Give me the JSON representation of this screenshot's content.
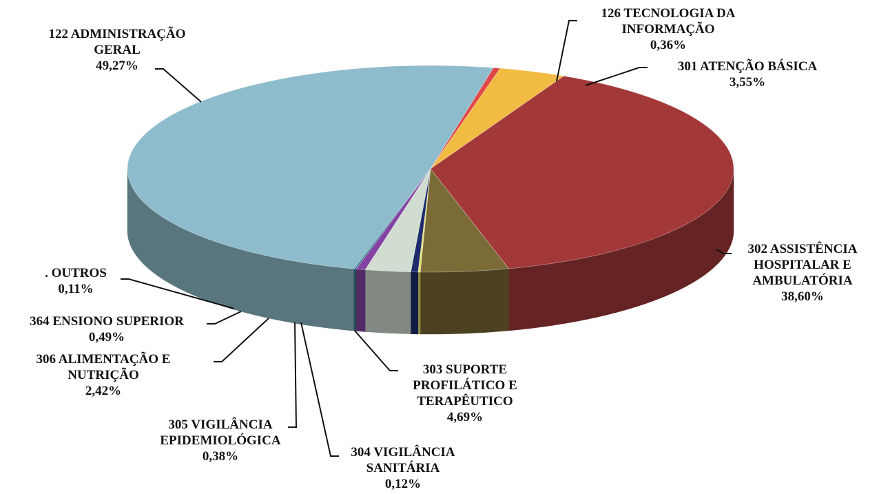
{
  "chart_data": {
    "type": "pie",
    "categories": [
      "122 ADMINISTRAÇÃO GERAL",
      "126 TECNOLOGIA DA INFORMAÇÃO",
      "301 ATENÇÃO BÁSICA",
      "302 ASSISTÊNCIA HOSPITALAR E AMBULATÓRIA",
      "303 SUPORTE PROFILÁTICO E TERAPÊUTICO",
      "304 VIGILÂNCIA SANITÁRIA",
      "305 VIGILÂNCIA EPIDEMIOLÓGICA",
      "306 ALIMENTAÇÃO E NUTRIÇÃO",
      "364 ENSIONO SUPERIOR",
      ". OUTROS"
    ],
    "values": [
      49.27,
      0.36,
      3.55,
      38.6,
      4.69,
      0.12,
      0.38,
      2.42,
      0.49,
      0.11
    ],
    "value_labels": [
      "49,27%",
      "0,36%",
      "3,55%",
      "38,60%",
      "4,69%",
      "0,12%",
      "0,38%",
      "2,42%",
      "0,49%",
      "0,11%"
    ],
    "colors": [
      "#8fbccc",
      "#e04848",
      "#f2bb42",
      "#a33838",
      "#7b6b36",
      "#e6e070",
      "#1c2c6c",
      "#d2ddd2",
      "#8443a3",
      "#3a7a90"
    ]
  }
}
